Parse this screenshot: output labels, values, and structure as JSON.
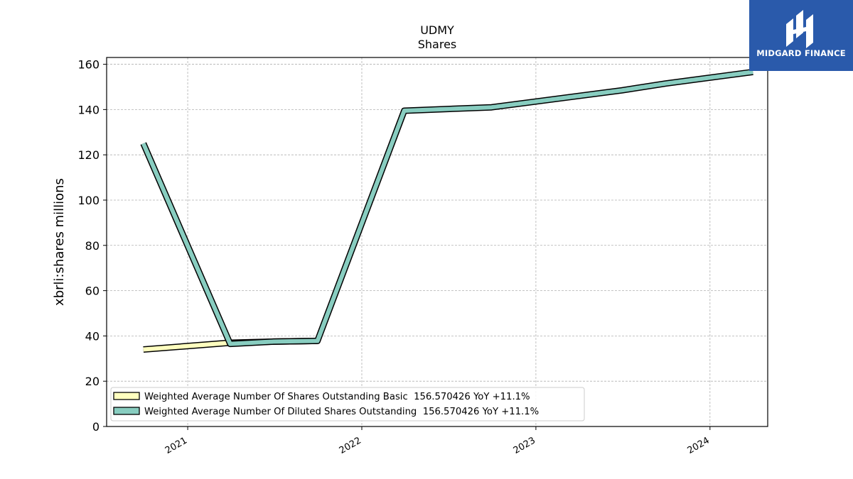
{
  "brand": {
    "name": "MIDGARD FINANCE",
    "color": "#2a5aab"
  },
  "chart_data": {
    "type": "line",
    "title": "UDMY",
    "subtitle": "Shares",
    "ylabel": "xbrli:shares millions",
    "xlabel": "",
    "ylim": [
      0,
      163
    ],
    "xlim": [
      "2020-07-15",
      "2024-05-01"
    ],
    "yticks": [
      0,
      20,
      40,
      60,
      80,
      100,
      120,
      140,
      160
    ],
    "xticks": [
      {
        "date": "2021-01-01",
        "label": "2021"
      },
      {
        "date": "2022-01-01",
        "label": "2022"
      },
      {
        "date": "2023-01-01",
        "label": "2023"
      },
      {
        "date": "2024-01-01",
        "label": "2024"
      }
    ],
    "grid": true,
    "legend_position": "lower-left",
    "series": [
      {
        "name": "Weighted Average Number Of Shares Outstanding Basic  156.570426 YoY +11.1%",
        "color": "#ffffbf",
        "points": [
          {
            "x": "2020-09-30",
            "y": 34.0
          },
          {
            "x": "2021-03-31",
            "y": 37.0
          },
          {
            "x": "2021-06-30",
            "y": 37.5
          },
          {
            "x": "2021-09-30",
            "y": 37.8
          }
        ]
      },
      {
        "name": "Weighted Average Number Of Diluted Shares Outstanding  156.570426 YoY +11.1%",
        "color": "#88cdc0",
        "points": [
          {
            "x": "2020-09-30",
            "y": 125.0
          },
          {
            "x": "2021-03-31",
            "y": 36.5
          },
          {
            "x": "2021-06-30",
            "y": 37.5
          },
          {
            "x": "2021-09-30",
            "y": 37.8
          },
          {
            "x": "2022-03-31",
            "y": 139.5
          },
          {
            "x": "2022-09-30",
            "y": 141.0
          },
          {
            "x": "2023-06-30",
            "y": 148.5
          },
          {
            "x": "2023-09-30",
            "y": 151.5
          },
          {
            "x": "2024-03-31",
            "y": 156.6
          }
        ]
      }
    ]
  }
}
